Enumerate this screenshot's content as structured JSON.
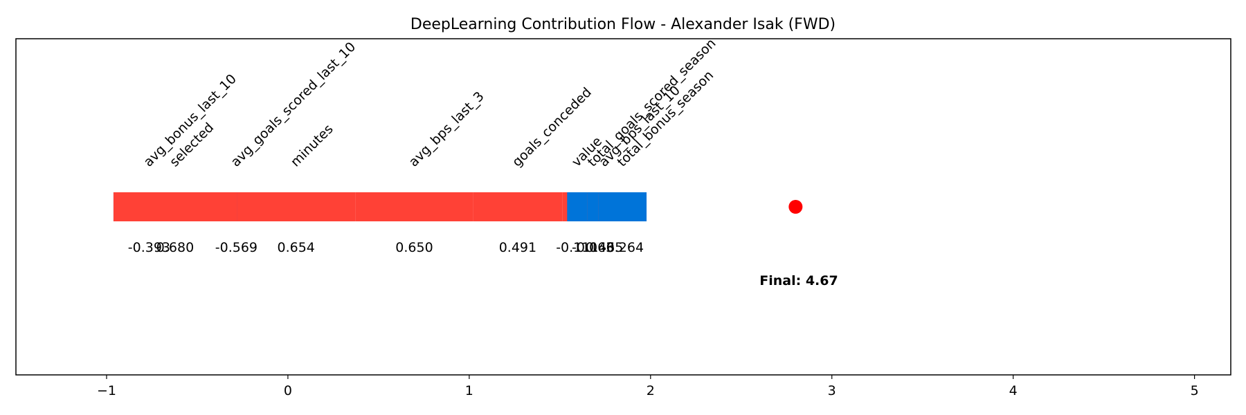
{
  "chart_data": {
    "type": "waterfall",
    "title": "DeepLearning Contribution Flow - Alexander Isak (FWD)",
    "xlabel": "",
    "ylabel": "",
    "xlim": [
      -1.5,
      5.2
    ],
    "xticks": [
      -1,
      0,
      1,
      2,
      3,
      4,
      5
    ],
    "xtick_labels": [
      "−1",
      "0",
      "1",
      "2",
      "3",
      "4",
      "5"
    ],
    "grid": false,
    "colors": {
      "positive": "#ff4136",
      "negative": "#0074d9",
      "marker": "#ff0000"
    },
    "contributions": [
      {
        "feature": "avg_goals_scored_last_10",
        "value": -0.569,
        "label": "-0.569"
      },
      {
        "feature": "avg_bonus_last_10",
        "value": -0.393,
        "label": "-0.393"
      },
      {
        "feature": "selected",
        "value": 0.68,
        "label": "0.680"
      },
      {
        "feature": "minutes",
        "value": 0.654,
        "label": "0.654"
      },
      {
        "feature": "avg_bps_last_3",
        "value": 0.65,
        "label": "0.650"
      },
      {
        "feature": "goals_conceded",
        "value": 0.491,
        "label": "0.491"
      },
      {
        "feature": "avg_bps_last_10",
        "value": 0.465,
        "label": "0.465"
      },
      {
        "feature": "total_bonus_season",
        "value": -0.264,
        "label": "-0.264"
      },
      {
        "feature": "total_goals_scored_season",
        "value": -0.063,
        "label": "-0.063"
      },
      {
        "feature": "value",
        "value": -0.111,
        "label": "-0.111"
      }
    ],
    "marker_x": 2.8,
    "final_label": "Final: 4.67"
  }
}
